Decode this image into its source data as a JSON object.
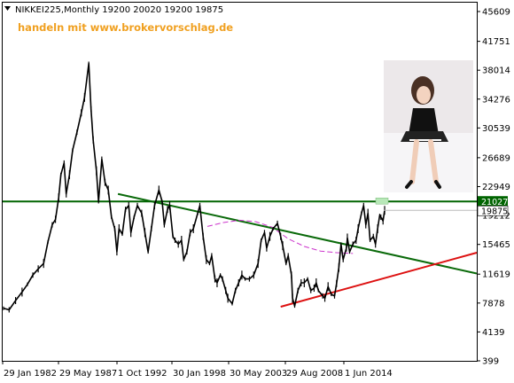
{
  "header": {
    "symbol_line": "NIKKEI225,Monthly  19200 20020 19200 19875",
    "promo": "handeln mit www.brokervorschlag.de"
  },
  "colors": {
    "price": "#000000",
    "resistance_line": "#006400",
    "downtrend_line": "#0a6a0a",
    "uptrend_line": "#dd1111",
    "magenta_curve": "#cc33cc",
    "current_price_box": "#ffffff",
    "resistance_box": "#006400"
  },
  "chart_data": {
    "type": "line",
    "title": "NIKKEI225,Monthly",
    "x_ticks": [
      "29 Jan 1982",
      "29 May 1987",
      "1 Oct 1992",
      "30 Jan 1998",
      "30 May 2003",
      "29 Aug 2008",
      "1 Jun 2014"
    ],
    "y_ticks": [
      45609,
      41751,
      38014,
      34276,
      30539,
      26689,
      22949,
      19212,
      15465,
      11619,
      7878,
      4139,
      399
    ],
    "y_range": [
      399,
      45609
    ],
    "ohlc_last": {
      "open": 19200,
      "high": 20020,
      "low": 19200,
      "close": 19875
    },
    "price_labels": {
      "resistance": "21027",
      "current": "19875"
    },
    "series": [
      {
        "values": [
          [
            1982.08,
            7200
          ],
          [
            1982.6,
            7000
          ],
          [
            1983.2,
            8200
          ],
          [
            1983.8,
            9300
          ],
          [
            1984.3,
            10300
          ],
          [
            1984.8,
            11500
          ],
          [
            1985.3,
            12300
          ],
          [
            1985.8,
            13000
          ],
          [
            1986.2,
            15800
          ],
          [
            1986.6,
            18000
          ],
          [
            1986.9,
            18700
          ],
          [
            1987.2,
            21500
          ],
          [
            1987.4,
            24500
          ],
          [
            1987.7,
            26000
          ],
          [
            1987.9,
            22000
          ],
          [
            1988.2,
            24500
          ],
          [
            1988.5,
            27700
          ],
          [
            1988.9,
            30000
          ],
          [
            1989.3,
            32500
          ],
          [
            1989.6,
            34500
          ],
          [
            1989.99,
            38900
          ],
          [
            1990.2,
            33000
          ],
          [
            1990.4,
            29000
          ],
          [
            1990.7,
            25000
          ],
          [
            1990.9,
            21000
          ],
          [
            1991.2,
            26500
          ],
          [
            1991.5,
            23500
          ],
          [
            1991.8,
            22500
          ],
          [
            1992.1,
            19000
          ],
          [
            1992.4,
            17500
          ],
          [
            1992.6,
            14500
          ],
          [
            1992.8,
            17500
          ],
          [
            1993.1,
            16800
          ],
          [
            1993.4,
            20000
          ],
          [
            1993.7,
            20500
          ],
          [
            1993.9,
            17000
          ],
          [
            1994.2,
            19000
          ],
          [
            1994.5,
            20500
          ],
          [
            1994.9,
            19500
          ],
          [
            1995.2,
            17000
          ],
          [
            1995.5,
            14500
          ],
          [
            1995.8,
            17500
          ],
          [
            1996.1,
            20500
          ],
          [
            1996.5,
            22500
          ],
          [
            1996.8,
            21000
          ],
          [
            1997.0,
            18000
          ],
          [
            1997.3,
            20000
          ],
          [
            1997.5,
            20500
          ],
          [
            1997.8,
            16500
          ],
          [
            1998.0,
            16000
          ],
          [
            1998.3,
            15500
          ],
          [
            1998.6,
            16000
          ],
          [
            1998.8,
            13500
          ],
          [
            1999.1,
            14500
          ],
          [
            1999.4,
            17000
          ],
          [
            1999.7,
            17500
          ],
          [
            2000.1,
            19500
          ],
          [
            2000.3,
            20500
          ],
          [
            2000.6,
            16500
          ],
          [
            2000.9,
            13500
          ],
          [
            2001.2,
            13000
          ],
          [
            2001.4,
            14000
          ],
          [
            2001.7,
            11000
          ],
          [
            2001.9,
            10500
          ],
          [
            2002.2,
            11500
          ],
          [
            2002.4,
            11000
          ],
          [
            2002.7,
            9500
          ],
          [
            2002.9,
            8500
          ],
          [
            2003.3,
            7800
          ],
          [
            2003.6,
            9500
          ],
          [
            2003.9,
            10500
          ],
          [
            2004.2,
            11500
          ],
          [
            2004.5,
            11000
          ],
          [
            2004.9,
            11000
          ],
          [
            2005.3,
            11500
          ],
          [
            2005.7,
            13000
          ],
          [
            2005.99,
            16000
          ],
          [
            2006.3,
            17000
          ],
          [
            2006.5,
            15000
          ],
          [
            2006.8,
            16500
          ],
          [
            2007.1,
            17500
          ],
          [
            2007.5,
            18200
          ],
          [
            2007.8,
            16500
          ],
          [
            2007.99,
            15300
          ],
          [
            2008.3,
            13000
          ],
          [
            2008.5,
            14000
          ],
          [
            2008.8,
            11500
          ],
          [
            2008.9,
            8500
          ],
          [
            2009.1,
            7500
          ],
          [
            2009.4,
            9500
          ],
          [
            2009.7,
            10500
          ],
          [
            2009.99,
            10500
          ],
          [
            2010.3,
            11000
          ],
          [
            2010.6,
            9500
          ],
          [
            2010.9,
            9800
          ],
          [
            2011.1,
            10500
          ],
          [
            2011.3,
            9500
          ],
          [
            2011.7,
            8800
          ],
          [
            2011.9,
            8500
          ],
          [
            2012.2,
            10000
          ],
          [
            2012.5,
            9000
          ],
          [
            2012.8,
            8800
          ],
          [
            2012.99,
            10400
          ],
          [
            2013.2,
            12500
          ],
          [
            2013.4,
            15500
          ],
          [
            2013.6,
            13500
          ],
          [
            2013.9,
            15000
          ],
          [
            2013.99,
            16300
          ],
          [
            2014.2,
            14500
          ],
          [
            2014.5,
            15500
          ],
          [
            2014.8,
            16000
          ],
          [
            2014.99,
            17500
          ],
          [
            2015.3,
            19500
          ],
          [
            2015.5,
            20500
          ],
          [
            2015.7,
            18000
          ],
          [
            2015.9,
            19500
          ],
          [
            2016.1,
            16000
          ],
          [
            2016.4,
            16500
          ],
          [
            2016.6,
            15500
          ],
          [
            2016.8,
            17500
          ],
          [
            2016.99,
            19200
          ],
          [
            2017.1,
            19000
          ],
          [
            2017.3,
            18500
          ],
          [
            2017.45,
            19875
          ]
        ]
      }
    ],
    "lines": [
      {
        "kind": "horizontal",
        "y": 21027
      },
      {
        "kind": "downtrend",
        "from": [
          1992.7,
          22000
        ],
        "to": [
          2026.0,
          11700
        ]
      },
      {
        "kind": "uptrend",
        "from": [
          2007.8,
          7400
        ],
        "to": [
          2026.0,
          14400
        ]
      }
    ],
    "magenta_curve": [
      [
        2001.0,
        17800
      ],
      [
        2002.5,
        18300
      ],
      [
        2004.0,
        18600
      ],
      [
        2005.5,
        18400
      ],
      [
        2007.0,
        17700
      ],
      [
        2008.5,
        16200
      ],
      [
        2010.0,
        15200
      ],
      [
        2011.5,
        14600
      ],
      [
        2013.0,
        14400
      ],
      [
        2014.5,
        14300
      ]
    ],
    "x_range": [
      1982.0,
      2026.0
    ]
  }
}
